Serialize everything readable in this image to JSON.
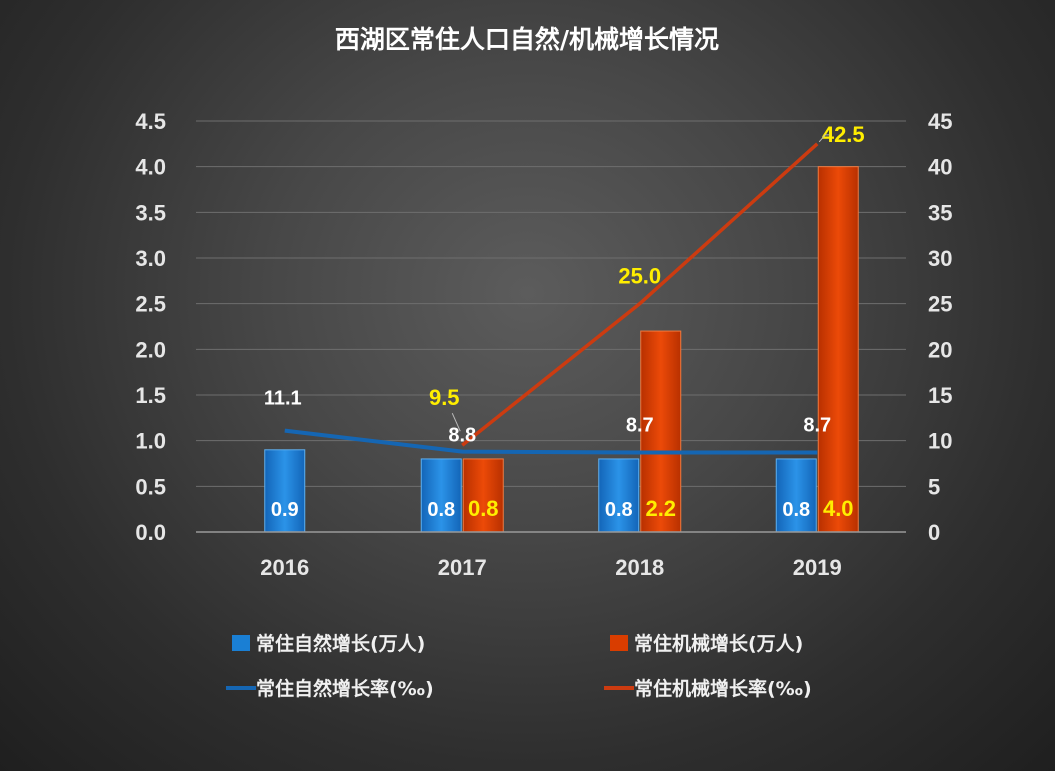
{
  "chart_data": {
    "type": "bar+line",
    "title": "西湖区常住人口自然/机械增长情况",
    "categories": [
      "2016",
      "2017",
      "2018",
      "2019"
    ],
    "bar_series": [
      {
        "name": "常住自然增长(万人)",
        "values": [
          0.9,
          0.8,
          0.8,
          0.8
        ],
        "labels": [
          "0.9",
          "0.8",
          "0.8",
          "0.8"
        ],
        "color": "#1a7fd4",
        "axis": "left"
      },
      {
        "name": "常住机械增长(万人)",
        "values": [
          null,
          0.8,
          2.2,
          4.0
        ],
        "labels": [
          "",
          "0.8",
          "2.2",
          "4.0"
        ],
        "color": "#d93d00",
        "axis": "left"
      }
    ],
    "line_series": [
      {
        "name": "常住自然增长率(‰)",
        "values": [
          11.1,
          8.8,
          8.7,
          8.7
        ],
        "labels": [
          "11.1",
          "8.8",
          "8.7",
          "8.7"
        ],
        "color": "#1566b3",
        "axis": "right"
      },
      {
        "name": "常住机械增长率(‰)",
        "values": [
          null,
          9.5,
          25.0,
          42.5
        ],
        "labels": [
          "",
          "9.5",
          "25.0",
          "42.5"
        ],
        "color": "#cc3b10",
        "axis": "right"
      }
    ],
    "left_axis": {
      "min": 0,
      "max": 4.5,
      "ticks": [
        "0.0",
        "0.5",
        "1.0",
        "1.5",
        "2.0",
        "2.5",
        "3.0",
        "3.5",
        "4.0",
        "4.5"
      ]
    },
    "right_axis": {
      "min": 0,
      "max": 45,
      "ticks": [
        "0",
        "5",
        "10",
        "15",
        "20",
        "25",
        "30",
        "35",
        "40",
        "45"
      ]
    },
    "legend_position": "bottom"
  }
}
